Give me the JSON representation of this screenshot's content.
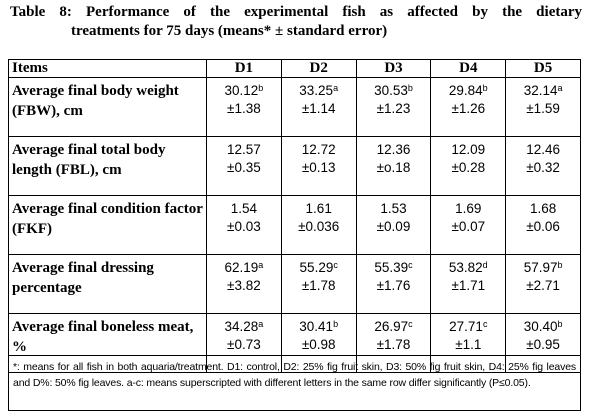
{
  "caption": {
    "line1": "Table 8: Performance of the experimental fish as affected by the dietary",
    "line2": "treatments for 75 days (means* ± standard error)"
  },
  "table": {
    "headers": [
      "Items",
      "D1",
      "D2",
      "D3",
      "D4",
      "D5"
    ],
    "rows": [
      {
        "label": "Average final body weight (FBW), cm",
        "cells": [
          {
            "mean": "30.12",
            "sup": "b",
            "se": "±1.38"
          },
          {
            "mean": "33.25",
            "sup": "a",
            "se": "±1.14"
          },
          {
            "mean": "30.53",
            "sup": "b",
            "se": "±1.23"
          },
          {
            "mean": "29.84",
            "sup": "b",
            "se": "±1.26"
          },
          {
            "mean": "32.14",
            "sup": "a",
            "se": "±1.59"
          }
        ]
      },
      {
        "label": "Average final total body length (FBL), cm",
        "cells": [
          {
            "mean": "12.57",
            "sup": "",
            "se": "±0.35"
          },
          {
            "mean": "12.72",
            "sup": "",
            "se": "±0.13"
          },
          {
            "mean": "12.36",
            "sup": "",
            "se": "±o.18"
          },
          {
            "mean": "12.09",
            "sup": "",
            "se": "±0.28"
          },
          {
            "mean": "12.46",
            "sup": "",
            "se": "±0.32"
          }
        ]
      },
      {
        "label": "Average final condition factor (FKF)",
        "cells": [
          {
            "mean": "1.54",
            "sup": "",
            "se": "±0.03"
          },
          {
            "mean": "1.61",
            "sup": "",
            "se": "±0.036"
          },
          {
            "mean": "1.53",
            "sup": "",
            "se": "±0.09"
          },
          {
            "mean": "1.69",
            "sup": "",
            "se": "±0.07"
          },
          {
            "mean": "1.68",
            "sup": "",
            "se": "±0.06"
          }
        ]
      },
      {
        "label": "Average final dressing percentage",
        "cells": [
          {
            "mean": "62.19",
            "sup": "a",
            "se": "±3.82"
          },
          {
            "mean": "55.29",
            "sup": "c",
            "se": "±1.78"
          },
          {
            "mean": "55.39",
            "sup": "c",
            "se": "±1.76"
          },
          {
            "mean": "53.82",
            "sup": "d",
            "se": "±1.71"
          },
          {
            "mean": "57.97",
            "sup": "b",
            "se": "±2.71"
          }
        ]
      },
      {
        "label": "Average final boneless meat, %",
        "cells": [
          {
            "mean": "34.28",
            "sup": "a",
            "se": "±0.73"
          },
          {
            "mean": "30.41",
            "sup": "b",
            "se": "±0.98"
          },
          {
            "mean": "26.97",
            "sup": "c",
            "se": "±1.78"
          },
          {
            "mean": "27.71",
            "sup": "c",
            "se": "±1.1"
          },
          {
            "mean": "30.40",
            "sup": "b",
            "se": "±0.95"
          }
        ]
      }
    ]
  },
  "footnote": "*: means for all fish in both aquaria/treatment. D1: control, D2: 25% fig fruit skin, D3: 50% fig fruit skin, D4: 25% fig leaves and D%: 50% fig leaves. a-c: means superscripted with different letters in the same row differ significantly (P≤0.05)."
}
